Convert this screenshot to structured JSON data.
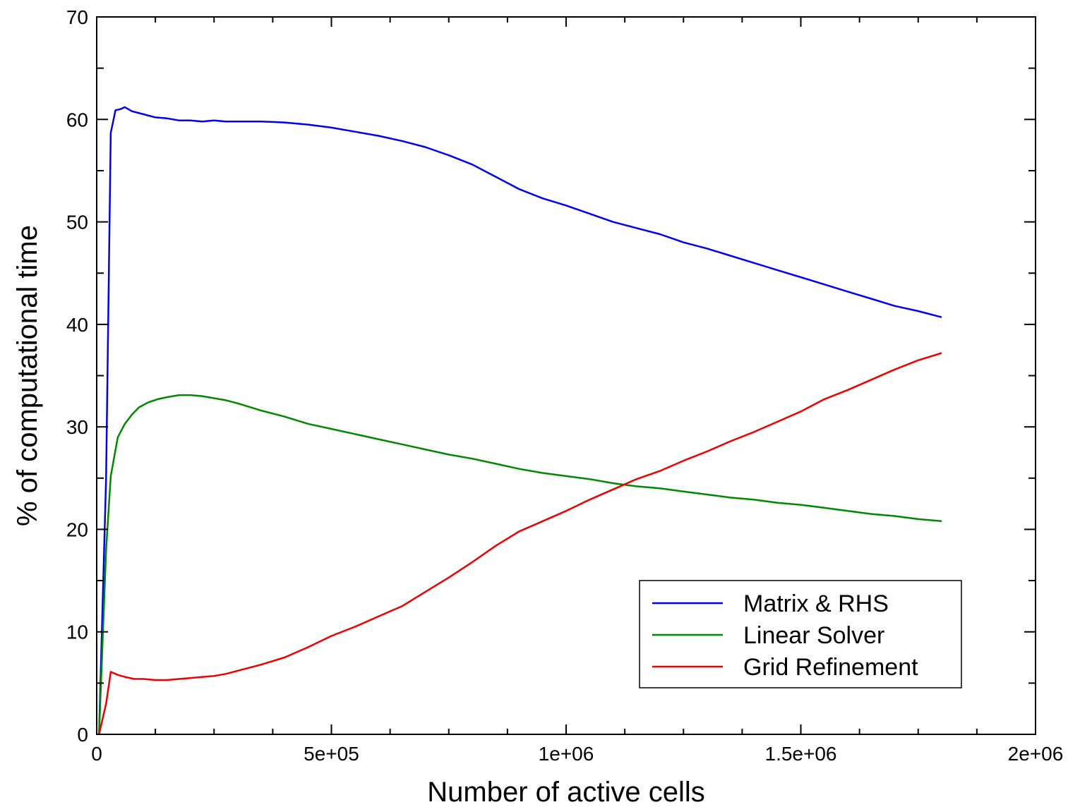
{
  "chart_data": {
    "type": "line",
    "title": "",
    "xlabel": "Number of active cells",
    "ylabel": "% of computational time",
    "xlim": [
      0,
      2000000
    ],
    "ylim": [
      0,
      70
    ],
    "x_ticks": [
      0,
      500000,
      1000000,
      1500000,
      2000000
    ],
    "x_tick_labels": [
      "0",
      "5e+05",
      "1e+06",
      "1.5e+06",
      "2e+06"
    ],
    "y_ticks": [
      0,
      10,
      20,
      30,
      40,
      50,
      60,
      70
    ],
    "y_tick_labels": [
      "0",
      "10",
      "20",
      "30",
      "40",
      "50",
      "60",
      "70"
    ],
    "grid": false,
    "legend_position": "bottom-right",
    "series": [
      {
        "name": "Matrix & RHS",
        "color": "#0000ee",
        "points": [
          [
            5000,
            0
          ],
          [
            20000,
            25
          ],
          [
            30000,
            58.7
          ],
          [
            40000,
            60.9
          ],
          [
            50000,
            61.0
          ],
          [
            60000,
            61.2
          ],
          [
            75000,
            60.8
          ],
          [
            100000,
            60.5
          ],
          [
            125000,
            60.2
          ],
          [
            150000,
            60.1
          ],
          [
            175000,
            59.9
          ],
          [
            200000,
            59.9
          ],
          [
            225000,
            59.8
          ],
          [
            250000,
            59.9
          ],
          [
            275000,
            59.8
          ],
          [
            300000,
            59.8
          ],
          [
            350000,
            59.8
          ],
          [
            400000,
            59.7
          ],
          [
            450000,
            59.5
          ],
          [
            500000,
            59.2
          ],
          [
            550000,
            58.8
          ],
          [
            600000,
            58.4
          ],
          [
            650000,
            57.9
          ],
          [
            700000,
            57.3
          ],
          [
            750000,
            56.5
          ],
          [
            800000,
            55.6
          ],
          [
            850000,
            54.4
          ],
          [
            900000,
            53.2
          ],
          [
            950000,
            52.3
          ],
          [
            1000000,
            51.6
          ],
          [
            1050000,
            50.8
          ],
          [
            1100000,
            50.0
          ],
          [
            1150000,
            49.4
          ],
          [
            1200000,
            48.8
          ],
          [
            1250000,
            48.0
          ],
          [
            1300000,
            47.4
          ],
          [
            1350000,
            46.7
          ],
          [
            1400000,
            46.0
          ],
          [
            1450000,
            45.3
          ],
          [
            1500000,
            44.6
          ],
          [
            1550000,
            43.9
          ],
          [
            1600000,
            43.2
          ],
          [
            1650000,
            42.5
          ],
          [
            1700000,
            41.8
          ],
          [
            1750000,
            41.3
          ],
          [
            1800000,
            40.7
          ]
        ]
      },
      {
        "name": "Linear Solver",
        "color": "#008800",
        "points": [
          [
            5000,
            0
          ],
          [
            20000,
            18
          ],
          [
            30000,
            25.2
          ],
          [
            45000,
            29.0
          ],
          [
            60000,
            30.3
          ],
          [
            75000,
            31.2
          ],
          [
            90000,
            31.9
          ],
          [
            110000,
            32.4
          ],
          [
            130000,
            32.7
          ],
          [
            150000,
            32.9
          ],
          [
            175000,
            33.1
          ],
          [
            200000,
            33.1
          ],
          [
            225000,
            33.0
          ],
          [
            250000,
            32.8
          ],
          [
            275000,
            32.6
          ],
          [
            300000,
            32.3
          ],
          [
            350000,
            31.6
          ],
          [
            400000,
            31.0
          ],
          [
            450000,
            30.3
          ],
          [
            500000,
            29.8
          ],
          [
            550000,
            29.3
          ],
          [
            600000,
            28.8
          ],
          [
            650000,
            28.3
          ],
          [
            700000,
            27.8
          ],
          [
            750000,
            27.3
          ],
          [
            800000,
            26.9
          ],
          [
            850000,
            26.4
          ],
          [
            900000,
            25.9
          ],
          [
            950000,
            25.5
          ],
          [
            1000000,
            25.2
          ],
          [
            1050000,
            24.9
          ],
          [
            1100000,
            24.5
          ],
          [
            1150000,
            24.2
          ],
          [
            1200000,
            24.0
          ],
          [
            1250000,
            23.7
          ],
          [
            1300000,
            23.4
          ],
          [
            1350000,
            23.1
          ],
          [
            1400000,
            22.9
          ],
          [
            1450000,
            22.6
          ],
          [
            1500000,
            22.4
          ],
          [
            1550000,
            22.1
          ],
          [
            1600000,
            21.8
          ],
          [
            1650000,
            21.5
          ],
          [
            1700000,
            21.3
          ],
          [
            1750000,
            21.0
          ],
          [
            1800000,
            20.8
          ]
        ]
      },
      {
        "name": "Grid Refinement",
        "color": "#ee0000",
        "points": [
          [
            5000,
            0
          ],
          [
            20000,
            3
          ],
          [
            30000,
            6.1
          ],
          [
            45000,
            5.8
          ],
          [
            60000,
            5.6
          ],
          [
            80000,
            5.4
          ],
          [
            100000,
            5.4
          ],
          [
            125000,
            5.3
          ],
          [
            150000,
            5.3
          ],
          [
            175000,
            5.4
          ],
          [
            200000,
            5.5
          ],
          [
            225000,
            5.6
          ],
          [
            250000,
            5.7
          ],
          [
            275000,
            5.9
          ],
          [
            300000,
            6.2
          ],
          [
            350000,
            6.8
          ],
          [
            400000,
            7.5
          ],
          [
            450000,
            8.5
          ],
          [
            500000,
            9.6
          ],
          [
            550000,
            10.5
          ],
          [
            600000,
            11.5
          ],
          [
            650000,
            12.5
          ],
          [
            700000,
            13.9
          ],
          [
            750000,
            15.3
          ],
          [
            800000,
            16.8
          ],
          [
            850000,
            18.4
          ],
          [
            900000,
            19.8
          ],
          [
            950000,
            20.8
          ],
          [
            1000000,
            21.8
          ],
          [
            1050000,
            22.9
          ],
          [
            1100000,
            23.9
          ],
          [
            1150000,
            24.9
          ],
          [
            1200000,
            25.7
          ],
          [
            1250000,
            26.7
          ],
          [
            1300000,
            27.6
          ],
          [
            1350000,
            28.6
          ],
          [
            1400000,
            29.5
          ],
          [
            1450000,
            30.5
          ],
          [
            1500000,
            31.5
          ],
          [
            1550000,
            32.7
          ],
          [
            1600000,
            33.6
          ],
          [
            1650000,
            34.6
          ],
          [
            1700000,
            35.6
          ],
          [
            1750000,
            36.5
          ],
          [
            1800000,
            37.2
          ]
        ]
      }
    ]
  }
}
